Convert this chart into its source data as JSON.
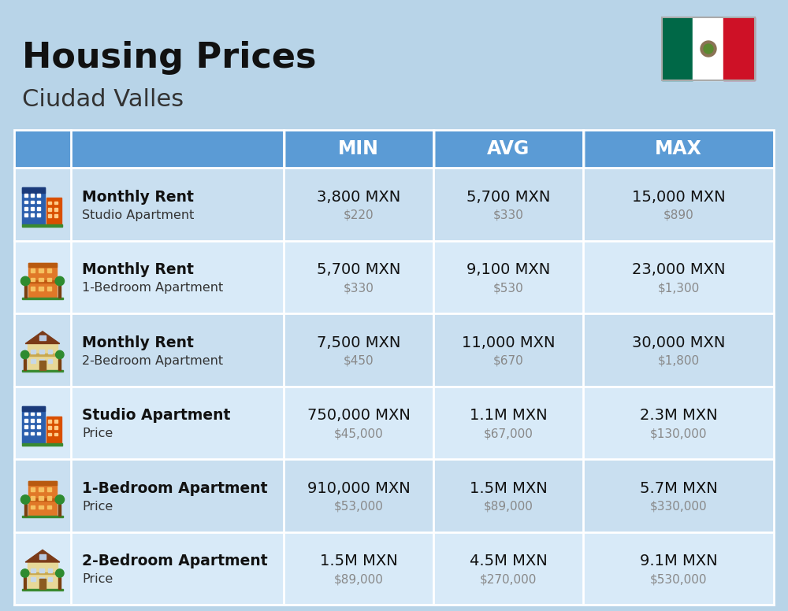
{
  "title": "Housing Prices",
  "subtitle": "Ciudad Valles",
  "bg_color": "#b8d4e8",
  "header_color": "#5b9bd5",
  "header_text_color": "#ffffff",
  "row_bg_even": "#c9dff0",
  "row_bg_odd": "#d8eaf8",
  "col_headers": [
    "MIN",
    "AVG",
    "MAX"
  ],
  "rows": [
    {
      "icon": "blue",
      "label_bold": "Monthly Rent",
      "label_normal": "Studio Apartment",
      "min_main": "3,800 MXN",
      "min_sub": "$220",
      "avg_main": "5,700 MXN",
      "avg_sub": "$330",
      "max_main": "15,000 MXN",
      "max_sub": "$890"
    },
    {
      "icon": "orange",
      "label_bold": "Monthly Rent",
      "label_normal": "1-Bedroom Apartment",
      "min_main": "5,700 MXN",
      "min_sub": "$330",
      "avg_main": "9,100 MXN",
      "avg_sub": "$530",
      "max_main": "23,000 MXN",
      "max_sub": "$1,300"
    },
    {
      "icon": "beige",
      "label_bold": "Monthly Rent",
      "label_normal": "2-Bedroom Apartment",
      "min_main": "7,500 MXN",
      "min_sub": "$450",
      "avg_main": "11,000 MXN",
      "avg_sub": "$670",
      "max_main": "30,000 MXN",
      "max_sub": "$1,800"
    },
    {
      "icon": "blue",
      "label_bold": "Studio Apartment",
      "label_normal": "Price",
      "min_main": "750,000 MXN",
      "min_sub": "$45,000",
      "avg_main": "1.1M MXN",
      "avg_sub": "$67,000",
      "max_main": "2.3M MXN",
      "max_sub": "$130,000"
    },
    {
      "icon": "orange",
      "label_bold": "1-Bedroom Apartment",
      "label_normal": "Price",
      "min_main": "910,000 MXN",
      "min_sub": "$53,000",
      "avg_main": "1.5M MXN",
      "avg_sub": "$89,000",
      "max_main": "5.7M MXN",
      "max_sub": "$330,000"
    },
    {
      "icon": "beige",
      "label_bold": "2-Bedroom Apartment",
      "label_normal": "Price",
      "min_main": "1.5M MXN",
      "min_sub": "$89,000",
      "avg_main": "4.5M MXN",
      "avg_sub": "$270,000",
      "max_main": "9.1M MXN",
      "max_sub": "$530,000"
    }
  ]
}
